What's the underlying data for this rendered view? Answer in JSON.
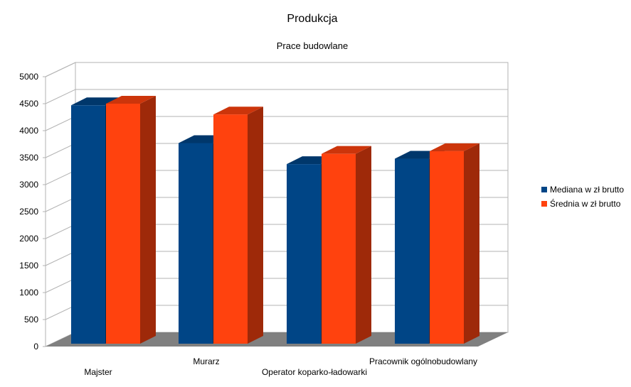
{
  "chart_data": {
    "type": "bar",
    "title": "Produkcja",
    "subtitle": "Prace budowlane",
    "categories": [
      "Majster",
      "Murarz",
      "Operator koparko-ładowarki",
      "Pracownik ogólnobudowlany"
    ],
    "series": [
      {
        "name": "Mediana w zł brutto",
        "values": [
          4470,
          3770,
          3380,
          3480
        ],
        "color": "#004586"
      },
      {
        "name": "Średnia w zł brutto",
        "values": [
          4500,
          4300,
          3570,
          3620
        ],
        "color": "#ff420e"
      }
    ],
    "ylim": [
      0,
      5000
    ],
    "yticks": [
      0,
      500,
      1000,
      1500,
      2000,
      2500,
      3000,
      3500,
      4000,
      4500,
      5000
    ],
    "grid": true,
    "legend": "right",
    "colors": {
      "wall": "#ffffff",
      "floor": "#808080",
      "grid": "#b3b3b3"
    }
  }
}
